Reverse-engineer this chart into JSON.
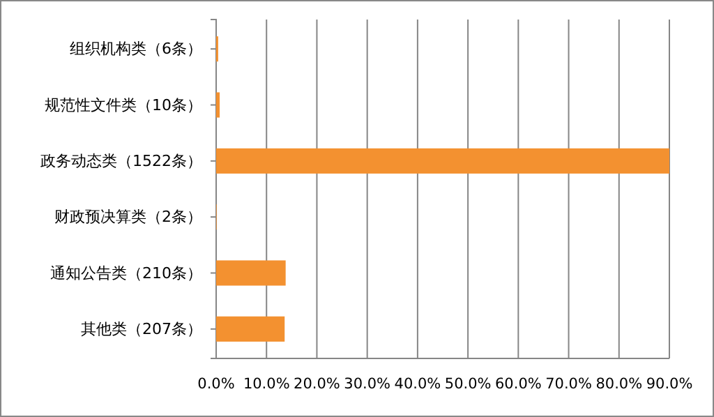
{
  "chart_data": {
    "type": "bar",
    "orientation": "horizontal",
    "categories": [
      "组织机构类（6条）",
      "规范性文件类（10条）",
      "政务动态类（1522条）",
      "财政预决算类（2条）",
      "通知公告类（210条）",
      "其他类（207条）"
    ],
    "values": [
      0.4,
      0.7,
      90,
      0.1,
      13.8,
      13.6
    ],
    "color": "#f39130",
    "xlim": [
      0,
      90
    ],
    "xticks": [
      {
        "value": 0,
        "label": "0.0%"
      },
      {
        "value": 10,
        "label": "10.0%"
      },
      {
        "value": 20,
        "label": "20.0%"
      },
      {
        "value": 30,
        "label": "30.0%"
      },
      {
        "value": 40,
        "label": "40.0%"
      },
      {
        "value": 50,
        "label": "50.0%"
      },
      {
        "value": 60,
        "label": "60.0%"
      },
      {
        "value": 70,
        "label": "70.0%"
      },
      {
        "value": 80,
        "label": "80.0%"
      },
      {
        "value": 90,
        "label": "90.0%"
      }
    ],
    "grid": "x"
  }
}
